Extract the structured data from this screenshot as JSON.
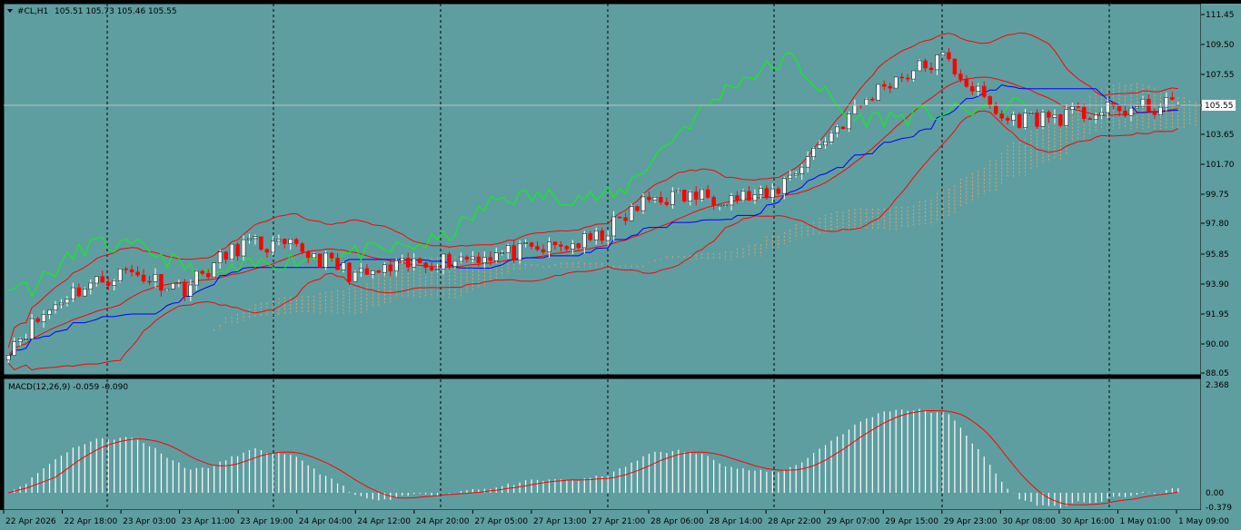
{
  "header": {
    "symbol_text": "#CL,H1",
    "ohlc_text": "105.51 105.73 105.46 105.55",
    "menu_icon": "triangle-down-icon"
  },
  "colors": {
    "background": "#5f9ea0",
    "candle_up": "#ffffff",
    "candle_down": "#ff0000",
    "bollinger": "#ff0000",
    "kijun": "#0000ff",
    "chikou": "#00ff00",
    "kumo": "#f4a460",
    "macd_hist": "#ffffff",
    "macd_signal": "#ff0000",
    "grid": "#000000",
    "bid_line": "#c0c0c0"
  },
  "price_axis": {
    "ticks": [
      "111.45",
      "109.50",
      "107.55",
      "105.55",
      "103.65",
      "101.70",
      "99.75",
      "97.80",
      "95.85",
      "93.90",
      "91.95",
      "90.00",
      "88.05"
    ],
    "current_price": "105.55"
  },
  "macd": {
    "label": "MACD(12,26,9) -0.059 -0.090",
    "axis_ticks": [
      "2.368",
      "0.00",
      "-0.379"
    ]
  },
  "time_axis": {
    "labels": [
      "22 Apr 2026",
      "22 Apr 18:00",
      "23 Apr 03:00",
      "23 Apr 11:00",
      "23 Apr 19:00",
      "24 Apr 04:00",
      "24 Apr 12:00",
      "24 Apr 20:00",
      "27 Apr 05:00",
      "27 Apr 13:00",
      "27 Apr 21:00",
      "28 Apr 06:00",
      "28 Apr 14:00",
      "28 Apr 22:00",
      "29 Apr 07:00",
      "29 Apr 15:00",
      "29 Apr 23:00",
      "30 Apr 08:00",
      "30 Apr 16:00",
      "1 May 01:00",
      "1 May 09:00"
    ]
  },
  "chart_data": {
    "type": "candlestick",
    "title": "#CL,H1",
    "ylim": [
      88.05,
      111.45
    ],
    "last_ohlc": {
      "open": 105.51,
      "high": 105.73,
      "low": 105.46,
      "close": 105.55
    },
    "macd_values": {
      "main": -0.059,
      "signal": -0.09
    },
    "indicators": [
      "Bollinger Bands",
      "Ichimoku Kinko Hyo",
      "MACD(12,26,9)"
    ],
    "close_path": [
      {
        "x": "22 Apr 2026",
        "y": 89.8
      },
      {
        "x": "22 Apr 18:00",
        "y": 93.2
      },
      {
        "x": "23 Apr 03:00",
        "y": 94.7
      },
      {
        "x": "23 Apr 11:00",
        "y": 93.6
      },
      {
        "x": "23 Apr 19:00",
        "y": 96.5
      },
      {
        "x": "24 Apr 04:00",
        "y": 96.1
      },
      {
        "x": "24 Apr 12:00",
        "y": 94.3
      },
      {
        "x": "24 Apr 20:00",
        "y": 95.2
      },
      {
        "x": "27 Apr 05:00",
        "y": 95.7
      },
      {
        "x": "27 Apr 13:00",
        "y": 96.0
      },
      {
        "x": "27 Apr 21:00",
        "y": 96.7
      },
      {
        "x": "28 Apr 06:00",
        "y": 99.5
      },
      {
        "x": "28 Apr 14:00",
        "y": 99.6
      },
      {
        "x": "28 Apr 22:00",
        "y": 99.5
      },
      {
        "x": "29 Apr 07:00",
        "y": 103.5
      },
      {
        "x": "29 Apr 15:00",
        "y": 107.0
      },
      {
        "x": "29 Apr 23:00",
        "y": 108.6
      },
      {
        "x": "30 Apr 08:00",
        "y": 104.6
      },
      {
        "x": "30 Apr 16:00",
        "y": 104.8
      },
      {
        "x": "1 May 01:00",
        "y": 105.2
      },
      {
        "x": "1 May 09:00",
        "y": 105.55
      }
    ]
  }
}
